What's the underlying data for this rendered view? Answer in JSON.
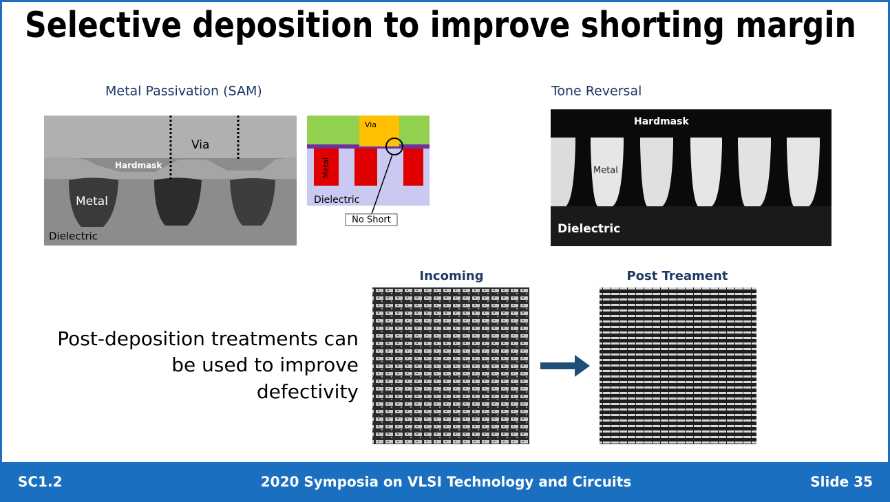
{
  "title": "Selective deposition to improve shorting margin",
  "left_panel": {
    "caption": "Metal Passivation (SAM)",
    "tem_labels": [
      "Via",
      "Hardmask",
      "Metal",
      "Dielectric"
    ],
    "schematic_labels": [
      "Via",
      "Metal",
      "Dielectric",
      "No Short"
    ]
  },
  "right_panel": {
    "caption": "Tone Reversal",
    "labels": [
      "Hardmask",
      "Metal",
      "Dielectric"
    ]
  },
  "body_text": [
    "Post-deposition treatments can",
    "be used to improve",
    "defectivity"
  ],
  "images": {
    "incoming": "Incoming",
    "post": "Post Treament"
  },
  "footer": {
    "left": "SC1.2",
    "center": "2020 Symposia on VLSI Technology and Circuits",
    "right": "Slide 35"
  }
}
